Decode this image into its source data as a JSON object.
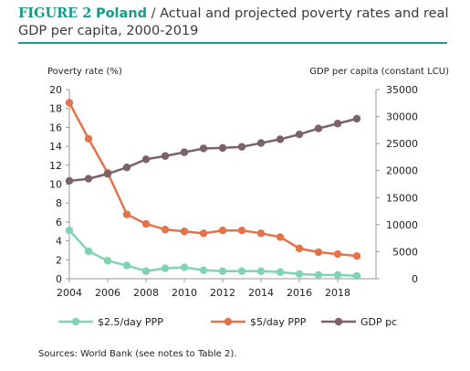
{
  "figure": {
    "label": "FIGURE 2",
    "country": "Poland",
    "title_rest": " / Actual and projected poverty rates and real GDP per capita, 2000-2019"
  },
  "source": "Sources: World Bank (see notes to Table 2).",
  "colors": {
    "accent": "#1a9a8a",
    "series_2_5": "#7fd4b3",
    "series_5": "#e2734a",
    "series_gdp": "#7b6168"
  },
  "chart_data": {
    "type": "line",
    "x": [
      2004,
      2005,
      2006,
      2007,
      2008,
      2009,
      2010,
      2011,
      2012,
      2013,
      2014,
      2015,
      2016,
      2017,
      2018,
      2019
    ],
    "xlim": [
      2004,
      2020
    ],
    "x_ticks": [
      2004,
      2006,
      2008,
      2010,
      2012,
      2014,
      2016,
      2018
    ],
    "y_left": {
      "label": "Poverty rate (%)",
      "lim": [
        0,
        20
      ],
      "ticks": [
        0,
        2,
        4,
        6,
        8,
        10,
        12,
        14,
        16,
        18,
        20
      ]
    },
    "y_right": {
      "label": "GDP per capita (constant LCU)",
      "lim": [
        0,
        35000
      ],
      "ticks": [
        0,
        5000,
        10000,
        15000,
        20000,
        25000,
        30000,
        35000
      ]
    },
    "series": [
      {
        "name": "$2.5/day PPP",
        "axis": "left",
        "color": "#7fd4b3",
        "values": [
          5.1,
          2.9,
          1.9,
          1.4,
          0.8,
          1.1,
          1.2,
          0.9,
          0.8,
          0.8,
          0.8,
          0.7,
          0.5,
          0.4,
          0.4,
          0.3
        ]
      },
      {
        "name": "$5/day PPP",
        "axis": "left",
        "color": "#e2734a",
        "values": [
          18.6,
          14.8,
          11.2,
          6.8,
          5.8,
          5.2,
          5.0,
          4.8,
          5.1,
          5.1,
          4.8,
          4.4,
          3.2,
          2.8,
          2.6,
          2.4
        ]
      },
      {
        "name": "GDP pc",
        "axis": "right",
        "color": "#7b6168",
        "values": [
          18100,
          18500,
          19400,
          20600,
          22100,
          22700,
          23400,
          24100,
          24200,
          24400,
          25100,
          25800,
          26700,
          27800,
          28700,
          29600
        ]
      }
    ],
    "grid": false,
    "legend": "bottom"
  }
}
